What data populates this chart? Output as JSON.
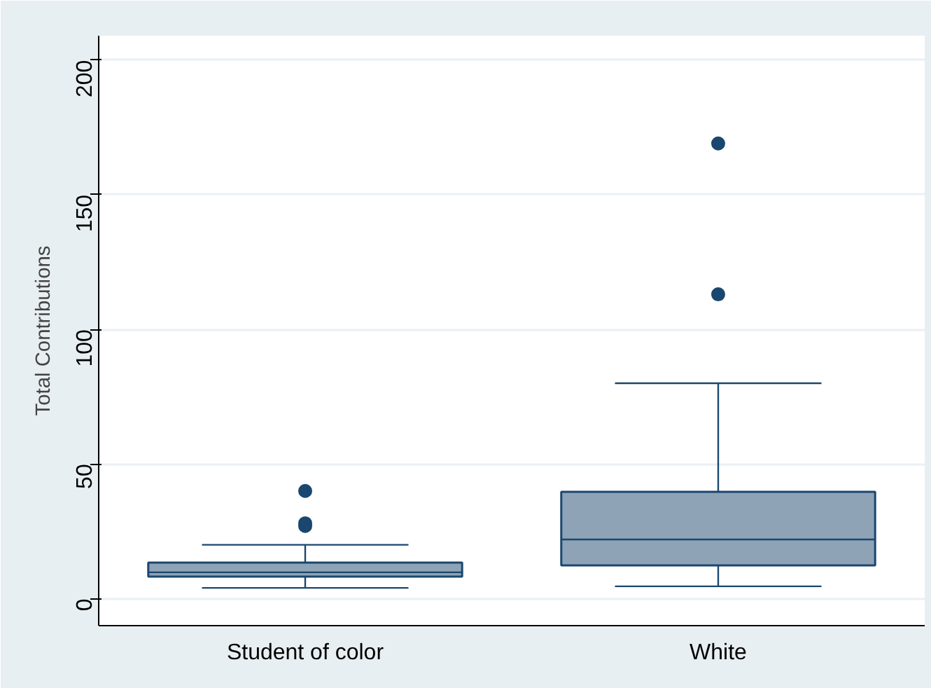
{
  "chart_data": {
    "type": "box",
    "ylabel": "Total Contributions",
    "categories": [
      "Student of color",
      "White"
    ],
    "boxes": [
      {
        "low": 4,
        "q1": 8.2,
        "median": 9.8,
        "q3": 13.4,
        "high": 20,
        "outliers": [
          27,
          28,
          40
        ]
      },
      {
        "low": 4.6,
        "q1": 12.4,
        "median": 22,
        "q3": 39.7,
        "high": 80,
        "outliers": [
          113,
          169
        ]
      }
    ],
    "color": "#8ea3b6",
    "ylim": [
      -10,
      209
    ],
    "yticks": [
      0,
      50,
      100,
      150,
      200
    ],
    "grid": "y"
  }
}
